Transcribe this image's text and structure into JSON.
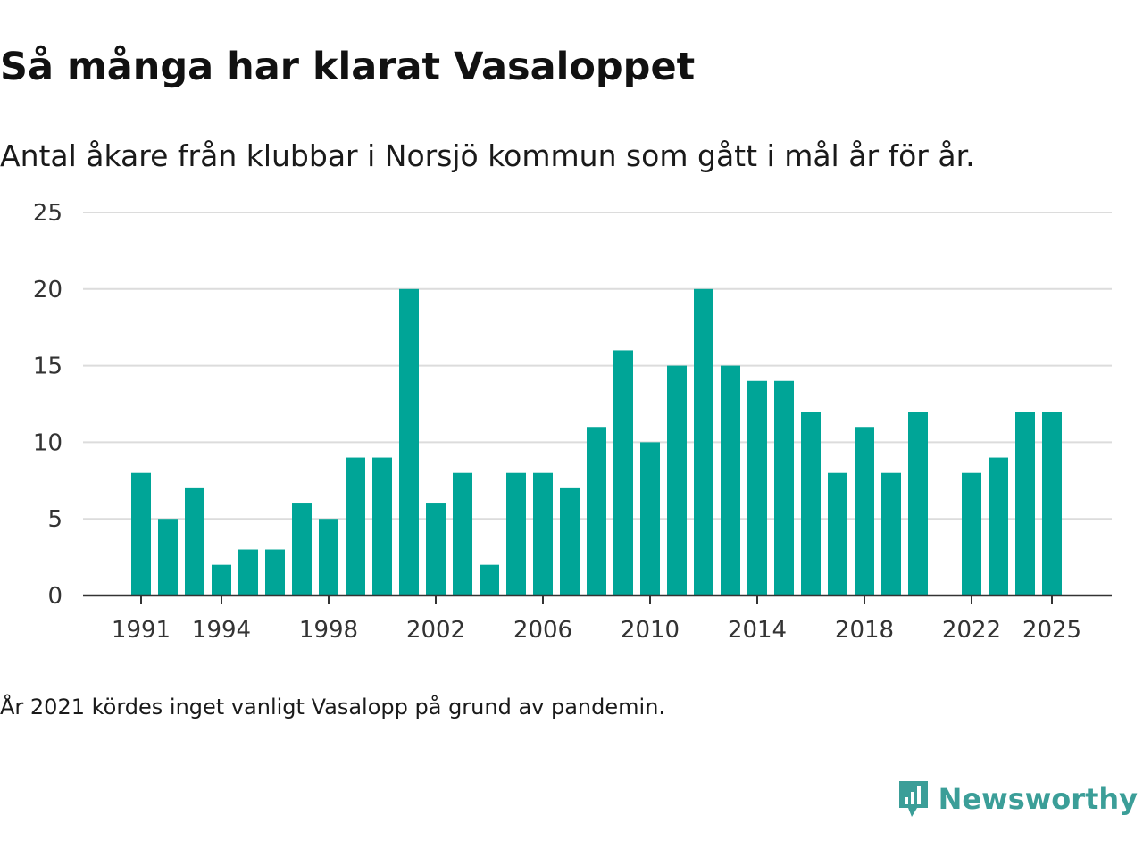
{
  "title": "Så många har klarat Vasaloppet",
  "subtitle": "Antal åkare från klubbar i Norsjö kommun som gått i mål år för år.",
  "note": "År 2021 kördes inget vanligt Vasalopp på grund av pandemin.",
  "logo": {
    "text": "Newsworthy",
    "icon": "newsworthy-logo-icon",
    "color": "#3b9e98"
  },
  "chart_data": {
    "type": "bar",
    "title": "Så många har klarat Vasaloppet",
    "subtitle": "Antal åkare från klubbar i Norsjö kommun som gått i mål år för år.",
    "xlabel": "",
    "ylabel": "",
    "bar_color": "#00a597",
    "ylim": [
      0,
      25
    ],
    "yticks": [
      0,
      5,
      10,
      15,
      20,
      25
    ],
    "xticks": [
      1991,
      1994,
      1998,
      2002,
      2006,
      2010,
      2014,
      2018,
      2022,
      2025
    ],
    "grid": true,
    "categories": [
      1991,
      1992,
      1993,
      1994,
      1995,
      1996,
      1997,
      1998,
      1999,
      2000,
      2001,
      2002,
      2003,
      2004,
      2005,
      2006,
      2007,
      2008,
      2009,
      2010,
      2011,
      2012,
      2013,
      2014,
      2015,
      2016,
      2017,
      2018,
      2019,
      2020,
      2021,
      2022,
      2023,
      2024,
      2025
    ],
    "values": [
      8,
      5,
      7,
      2,
      3,
      3,
      6,
      5,
      9,
      9,
      20,
      6,
      8,
      2,
      8,
      8,
      7,
      11,
      16,
      10,
      15,
      20,
      15,
      14,
      14,
      12,
      8,
      11,
      8,
      12,
      null,
      8,
      9,
      12,
      12
    ]
  }
}
